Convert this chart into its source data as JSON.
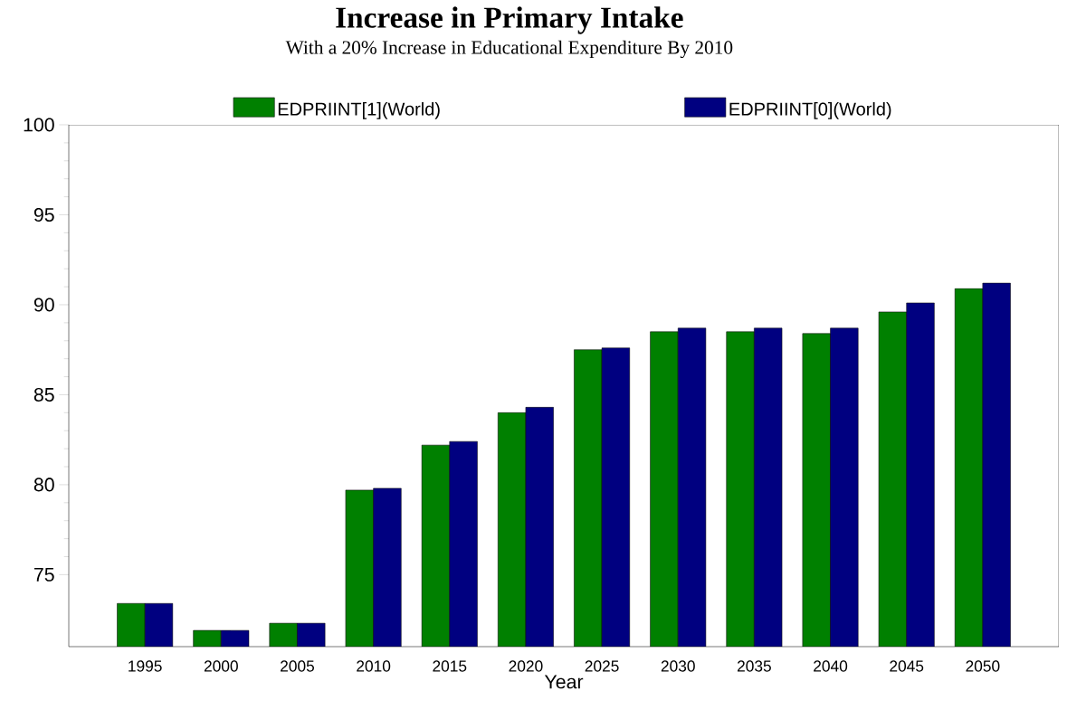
{
  "chart_data": {
    "type": "bar",
    "title": "Increase in Primary Intake",
    "subtitle": "With a 20% Increase in Educational Expenditure By 2010",
    "xlabel": "Year",
    "categories": [
      "1995",
      "2000",
      "2005",
      "2010",
      "2015",
      "2020",
      "2025",
      "2030",
      "2035",
      "2040",
      "2045",
      "2050"
    ],
    "series": [
      {
        "name": "EDPRIINT[1](World)",
        "color": "#008000",
        "values": [
          73.4,
          71.9,
          72.3,
          79.7,
          82.2,
          84.0,
          87.5,
          88.5,
          88.5,
          88.4,
          89.6,
          90.9
        ]
      },
      {
        "name": "EDPRIINT[0](World)",
        "color": "#000080",
        "values": [
          73.4,
          71.9,
          72.3,
          79.8,
          82.4,
          84.3,
          87.6,
          88.7,
          88.7,
          88.7,
          90.1,
          91.2
        ]
      }
    ],
    "ylim": [
      71,
      100
    ],
    "yticks": [
      75,
      80,
      85,
      90,
      95,
      100
    ],
    "grid": false,
    "legend": "top"
  }
}
